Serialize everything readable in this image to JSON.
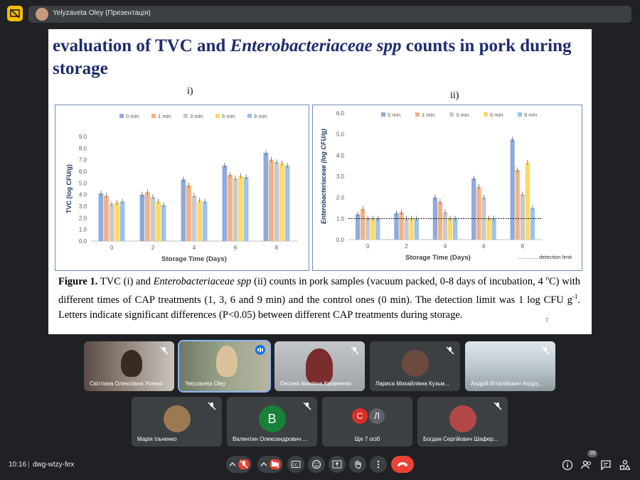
{
  "presenter_bar": {
    "name": "Yelyzaveta Oley (Презентація)"
  },
  "slide": {
    "title_part1": "evaluation of TVC and ",
    "title_italic": "Enterobacteriaceae spp",
    "title_part2": " counts in pork during storage",
    "label_i": "i)",
    "label_ii": "ii)",
    "caption_bold": "Figure 1.",
    "caption_a": " TVC (i) and ",
    "caption_italic": "Enterobacteriaceae spp",
    "caption_b": " (ii) counts in pork samples (vacuum packed, 0-8 days of incubation, 4 ",
    "caption_sup": "o",
    "caption_c": "C) with different times of CAP treatments (1, 3, 6 and 9 min) and the control ones (0 min). The detection limit was 1 log CFU g",
    "caption_sup2": "-1",
    "caption_d": ". Letters indicate significant differences (P<0.05) between different CAP treatments during storage.",
    "page_number": "7"
  },
  "chart_data": [
    {
      "type": "bar",
      "title": "",
      "xlabel": "Storage Time (Days)",
      "ylabel": "TVC (log CFU/g)",
      "categories": [
        "0",
        "2",
        "4",
        "6",
        "8"
      ],
      "ylim": [
        0,
        9
      ],
      "yticks": [
        "0.0",
        "1.0",
        "2.0",
        "3.0",
        "4.0",
        "5.0",
        "6.0",
        "7.0",
        "8.0",
        "9.0"
      ],
      "legend_position": "top",
      "series": [
        {
          "name": "0 min",
          "color": "#8faadc",
          "values": [
            4.1,
            4.0,
            5.3,
            6.5,
            7.6
          ]
        },
        {
          "name": "1 min",
          "color": "#f4b183",
          "values": [
            3.9,
            4.2,
            4.8,
            5.7,
            7.0
          ]
        },
        {
          "name": "3 min",
          "color": "#c9c9c9",
          "values": [
            3.2,
            3.8,
            3.9,
            5.4,
            6.8
          ]
        },
        {
          "name": "6 min",
          "color": "#ffd966",
          "values": [
            3.3,
            3.4,
            3.5,
            5.6,
            6.7
          ]
        },
        {
          "name": "9 min",
          "color": "#9dc3e6",
          "values": [
            3.4,
            3.1,
            3.4,
            5.5,
            6.5
          ]
        }
      ]
    },
    {
      "type": "bar",
      "title": "",
      "xlabel": "Storage Time (Days)",
      "ylabel": "Enterobacteriaceae (log CFU/g)",
      "categories": [
        "0",
        "2",
        "4",
        "6",
        "8"
      ],
      "ylim": [
        0,
        6
      ],
      "yticks": [
        "0.0",
        "1.0",
        "2.0",
        "3.0",
        "4.0",
        "5.0",
        "6.0"
      ],
      "legend_position": "top",
      "detection_limit": 1.0,
      "detection_label": "............. detection limit",
      "series": [
        {
          "name": "0 min",
          "color": "#8faadc",
          "values": [
            1.2,
            1.25,
            2.0,
            2.9,
            4.75
          ]
        },
        {
          "name": "1 min",
          "color": "#f4b183",
          "values": [
            1.45,
            1.3,
            1.8,
            2.5,
            3.3
          ]
        },
        {
          "name": "3 min",
          "color": "#c9c9c9",
          "values": [
            1.0,
            1.0,
            1.3,
            2.0,
            2.15
          ]
        },
        {
          "name": "6 min",
          "color": "#ffd966",
          "values": [
            1.0,
            1.0,
            1.0,
            1.0,
            3.65
          ]
        },
        {
          "name": "9 min",
          "color": "#9dc3e6",
          "values": [
            1.0,
            1.0,
            1.0,
            1.0,
            1.5
          ]
        }
      ]
    }
  ],
  "participants": [
    {
      "name": "Світлана Олексіївна Усенко",
      "muted": true
    },
    {
      "name": "Yelyzaveta Oley",
      "speaking": true
    },
    {
      "name": "Оксана Іванівна Кравченко",
      "muted": true
    },
    {
      "name": "Лариса Михайлівна Кузьм...",
      "muted": true
    },
    {
      "name": "Андрій Віталійович Андру...",
      "muted": true
    },
    {
      "name": "Марія Ільченко",
      "muted": true
    },
    {
      "name": "Валентин Олександрович ...",
      "muted": true,
      "initial": "В",
      "color": "#188038"
    },
    {
      "name": "Ще 7 осіб",
      "initials": [
        "С",
        "Л"
      ],
      "colors": [
        "#d93025",
        "#5f6368"
      ]
    },
    {
      "name": "Богдан Сергійович Шафер...",
      "muted": true
    }
  ],
  "bottom_bar": {
    "time": "10:16",
    "separator": "|",
    "meeting_id": "dwg-wtzy-fex",
    "people_count": "16"
  },
  "icons": [
    "present-icon",
    "mic-off-icon",
    "cam-off-icon",
    "captions-icon",
    "emoji-icon",
    "present-screen-icon",
    "raise-hand-icon",
    "more-icon",
    "hangup-icon",
    "info-icon",
    "people-icon",
    "chat-icon",
    "activities-icon"
  ]
}
